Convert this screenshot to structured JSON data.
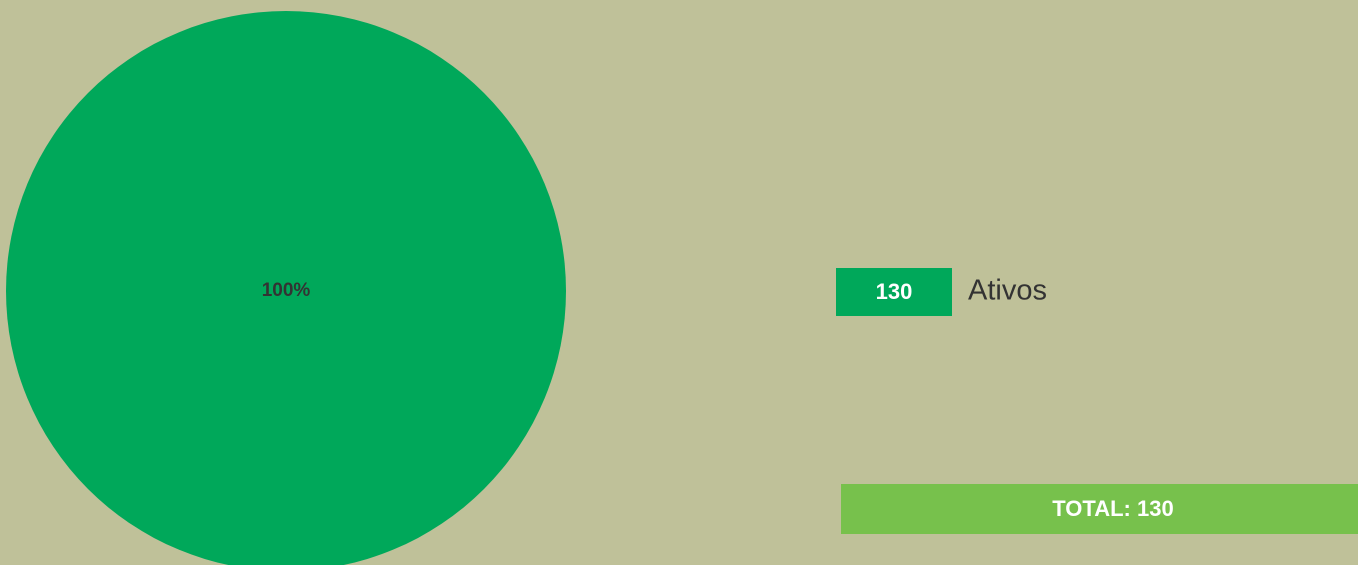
{
  "chart_data": {
    "type": "pie",
    "categories": [
      "Ativos"
    ],
    "values": [
      100
    ],
    "value_labels": [
      "100%"
    ],
    "counts": [
      130
    ],
    "colors": [
      "#00a85a"
    ],
    "total_label": "TOTAL:",
    "total": 130,
    "total_color": "#77c14c"
  }
}
